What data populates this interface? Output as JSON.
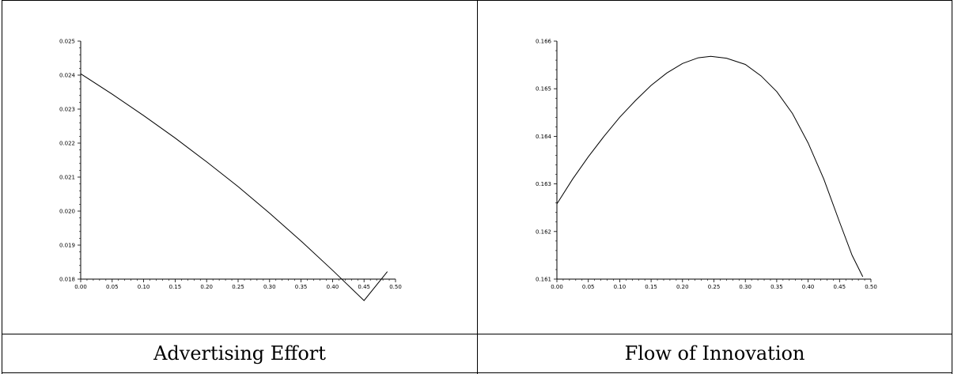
{
  "captions": [
    "Advertising Effort",
    "Flow of Innovation"
  ],
  "chart_data": [
    {
      "type": "line",
      "title": "",
      "xlabel": "",
      "ylabel": "",
      "xlim": [
        0.0,
        0.5
      ],
      "ylim": [
        0.018,
        0.025
      ],
      "xticks": [
        "0.00",
        "0.05",
        "0.10",
        "0.15",
        "0.20",
        "0.25",
        "0.30",
        "0.35",
        "0.40",
        "0.45",
        "0.50"
      ],
      "yticks": [
        "0.018",
        "0.019",
        "0.020",
        "0.021",
        "0.022",
        "0.023",
        "0.024",
        "0.025"
      ],
      "grid": false,
      "series": [
        {
          "x": [
            0.0,
            0.05,
            0.1,
            0.15,
            0.2,
            0.25,
            0.3,
            0.35,
            0.4,
            0.45,
            0.487
          ],
          "values": [
            0.02404,
            0.02344,
            0.02281,
            0.02215,
            0.02145,
            0.02072,
            0.01994,
            0.01912,
            0.01826,
            0.01737,
            0.01822
          ]
        }
      ]
    },
    {
      "type": "line",
      "title": "",
      "xlabel": "",
      "ylabel": "",
      "xlim": [
        0.0,
        0.5
      ],
      "ylim": [
        0.161,
        0.166
      ],
      "xticks": [
        "0.00",
        "0.05",
        "0.10",
        "0.15",
        "0.20",
        "0.25",
        "0.30",
        "0.35",
        "0.40",
        "0.45",
        "0.50"
      ],
      "yticks": [
        "0.161",
        "0.162",
        "0.163",
        "0.164",
        "0.165",
        "0.166"
      ],
      "grid": false,
      "series": [
        {
          "x": [
            0.0,
            0.025,
            0.05,
            0.075,
            0.1,
            0.125,
            0.15,
            0.175,
            0.2,
            0.225,
            0.245,
            0.27,
            0.3,
            0.325,
            0.35,
            0.375,
            0.4,
            0.425,
            0.45,
            0.47,
            0.487
          ],
          "values": [
            0.16258,
            0.1631,
            0.16357,
            0.164,
            0.1644,
            0.16475,
            0.16507,
            0.16533,
            0.16553,
            0.16565,
            0.16568,
            0.16564,
            0.16551,
            0.16527,
            0.16494,
            0.16448,
            0.16386,
            0.1631,
            0.1622,
            0.1615,
            0.16105
          ]
        }
      ]
    }
  ]
}
